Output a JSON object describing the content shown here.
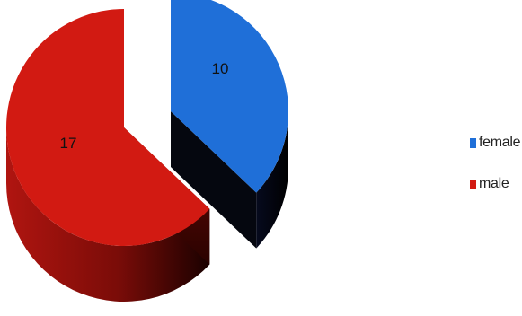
{
  "chart_data": {
    "type": "pie",
    "style": "3d-exploded",
    "title": "",
    "slices": [
      {
        "label": "female",
        "value": 10,
        "color": "#1f6fd8",
        "exploded": true
      },
      {
        "label": "male",
        "value": 17,
        "color": "#d21a12",
        "exploded": false
      }
    ],
    "data_labels": [
      "10",
      "17"
    ],
    "legend": {
      "position": "right",
      "entries": [
        "female",
        "male"
      ]
    }
  }
}
